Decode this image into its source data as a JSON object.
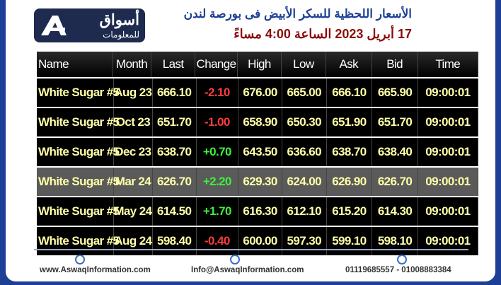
{
  "header": {
    "logo_title": "أسواق",
    "logo_subtitle": "للمعلومات",
    "title_line1": "الأسعار اللحظية للسكر الأبيض فى بورصة لندن",
    "title_line2": "17 أبريل 2023 الساعة 4:00 مساءً"
  },
  "table": {
    "columns": [
      "Name",
      "Month",
      "Last",
      "Change",
      "High",
      "Low",
      "Ask",
      "Bid",
      "Time"
    ],
    "rows": [
      [
        "White Sugar #5",
        "Aug 23",
        "666.10",
        "-2.10",
        "676.00",
        "665.00",
        "666.10",
        "665.90",
        "09:00:01"
      ],
      [
        "White Sugar #5",
        "Oct 23",
        "651.70",
        "-1.00",
        "658.90",
        "650.30",
        "651.90",
        "651.70",
        "09:00:01"
      ],
      [
        "White Sugar #5",
        "Dec 23",
        "638.70",
        "+0.70",
        "643.50",
        "636.60",
        "638.70",
        "638.40",
        "09:00:01"
      ],
      [
        "White Sugar #5",
        "Mar 24",
        "626.70",
        "+2.20",
        "629.30",
        "624.00",
        "626.90",
        "626.70",
        "09:00:01"
      ],
      [
        "White Sugar #5",
        "May 24",
        "614.50",
        "+1.70",
        "616.30",
        "612.10",
        "615.20",
        "614.30",
        "09:00:01"
      ],
      [
        "White Sugar #5",
        "Aug 24",
        "598.40",
        "-0.40",
        "600.00",
        "597.30",
        "599.10",
        "598.10",
        "09:00:01"
      ]
    ]
  },
  "footer": {
    "website": "www.AswaqInformation.com",
    "email": "Info@AswaqInformation.com",
    "phones": "01119685557 - 01008883384"
  }
}
